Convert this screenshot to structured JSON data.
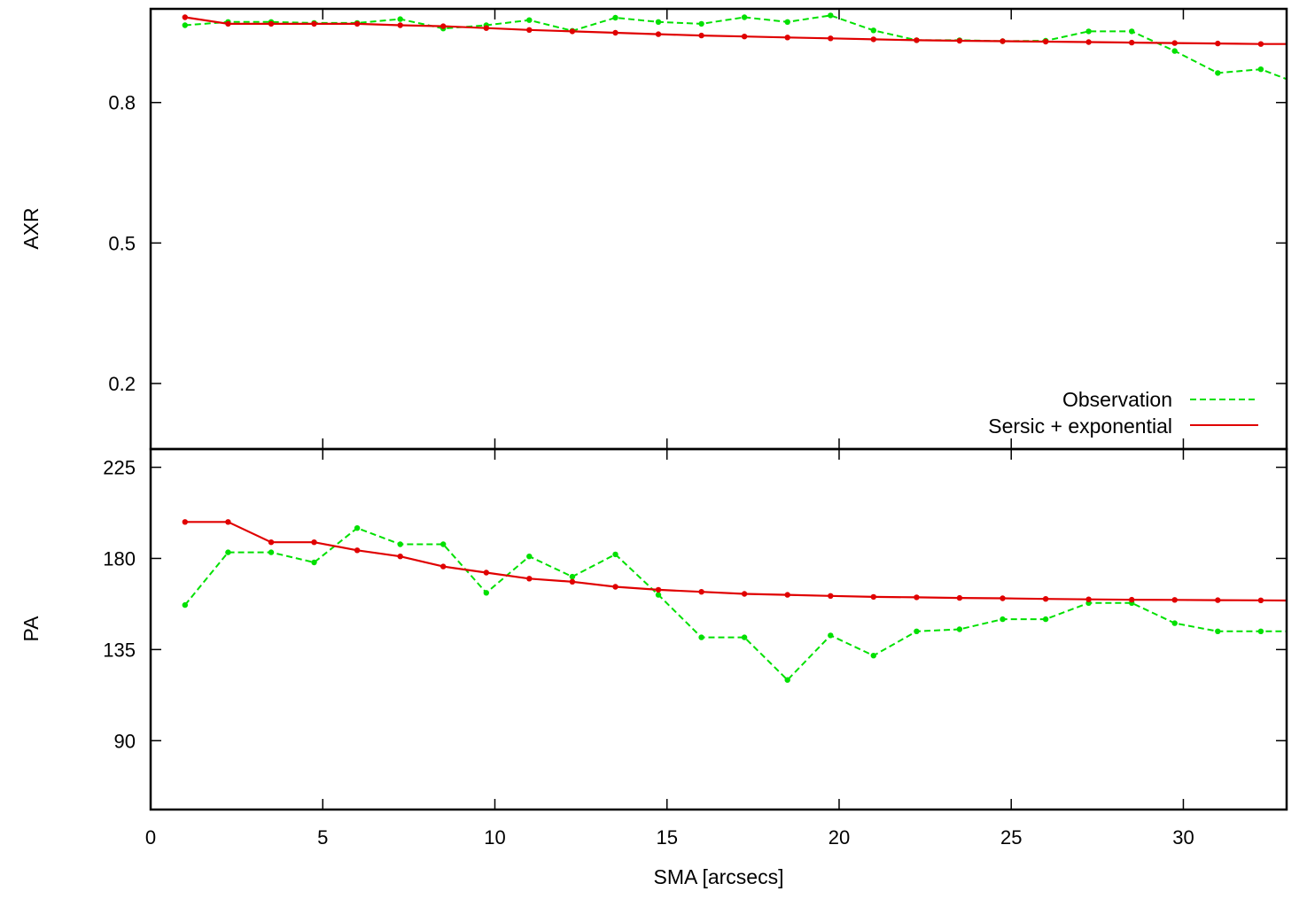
{
  "chart_data": {
    "type": "line",
    "xlabel": "SMA [arcsecs]",
    "xlim": [
      0,
      33
    ],
    "xticks": [
      0,
      5,
      10,
      15,
      20,
      25,
      30
    ],
    "colors": {
      "observation": "#00e000",
      "model": "#e00000"
    },
    "legend_position": "bottom-right of upper panel",
    "panels": [
      {
        "id": "axr",
        "ylabel": "AXR",
        "ylim": [
          0.06,
          1.0
        ],
        "yticks": [
          0.2,
          0.5,
          0.8
        ],
        "series": [
          {
            "name": "Observation",
            "style": "dashed",
            "x": [
              1.0,
              2.25,
              3.5,
              4.75,
              6.0,
              7.25,
              8.5,
              9.75,
              11.0,
              12.25,
              13.5,
              14.75,
              16.0,
              17.25,
              18.5,
              19.75,
              21.0,
              22.25,
              23.5,
              24.75,
              26.0,
              27.25,
              28.5,
              29.75,
              31.0,
              32.25,
              33.0
            ],
            "y": [
              0.965,
              0.972,
              0.972,
              0.97,
              0.97,
              0.978,
              0.958,
              0.965,
              0.976,
              0.953,
              0.981,
              0.972,
              0.968,
              0.982,
              0.972,
              0.986,
              0.954,
              0.933,
              0.933,
              0.931,
              0.932,
              0.952,
              0.952,
              0.91,
              0.863,
              0.871,
              0.85
            ]
          },
          {
            "name": "Sersic + exponential",
            "style": "solid",
            "x": [
              1.0,
              2.25,
              3.5,
              4.75,
              6.0,
              7.25,
              8.5,
              9.75,
              11.0,
              12.25,
              13.5,
              14.75,
              16.0,
              17.25,
              18.5,
              19.75,
              21.0,
              22.25,
              23.5,
              24.75,
              26.0,
              27.25,
              28.5,
              29.75,
              31.0,
              32.25,
              33.0
            ],
            "y": [
              0.982,
              0.968,
              0.968,
              0.968,
              0.968,
              0.965,
              0.963,
              0.959,
              0.955,
              0.952,
              0.949,
              0.946,
              0.943,
              0.941,
              0.939,
              0.937,
              0.935,
              0.933,
              0.932,
              0.931,
              0.93,
              0.929,
              0.928,
              0.927,
              0.926,
              0.925,
              0.925
            ]
          }
        ]
      },
      {
        "id": "pa",
        "ylabel": "PA",
        "ylim": [
          56,
          234
        ],
        "yticks": [
          90,
          135,
          180,
          225
        ],
        "series": [
          {
            "name": "Observation",
            "style": "dashed",
            "x": [
              1.0,
              2.25,
              3.5,
              4.75,
              6.0,
              7.25,
              8.5,
              9.75,
              11.0,
              12.25,
              13.5,
              14.75,
              16.0,
              17.25,
              18.5,
              19.75,
              21.0,
              22.25,
              23.5,
              24.75,
              26.0,
              27.25,
              28.5,
              29.75,
              31.0,
              32.25,
              33.0
            ],
            "y": [
              157,
              183,
              183,
              178,
              195,
              187,
              187,
              163,
              181,
              171,
              182,
              162,
              141,
              141,
              120,
              142,
              132,
              144,
              145,
              150,
              150,
              158,
              158,
              148,
              144,
              144,
              144
            ]
          },
          {
            "name": "Sersic + exponential",
            "style": "solid",
            "x": [
              1.0,
              2.25,
              3.5,
              4.75,
              6.0,
              7.25,
              8.5,
              9.75,
              11.0,
              12.25,
              13.5,
              14.75,
              16.0,
              17.25,
              18.5,
              19.75,
              21.0,
              22.25,
              23.5,
              24.75,
              26.0,
              27.25,
              28.5,
              29.75,
              31.0,
              32.25,
              33.0
            ],
            "y": [
              198,
              198,
              188,
              188,
              184,
              181,
              176,
              173,
              170,
              168.5,
              166,
              164.5,
              163.5,
              162.5,
              162,
              161.5,
              161,
              160.8,
              160.5,
              160.3,
              160,
              159.8,
              159.6,
              159.5,
              159.4,
              159.3,
              159.2
            ]
          }
        ]
      }
    ]
  }
}
